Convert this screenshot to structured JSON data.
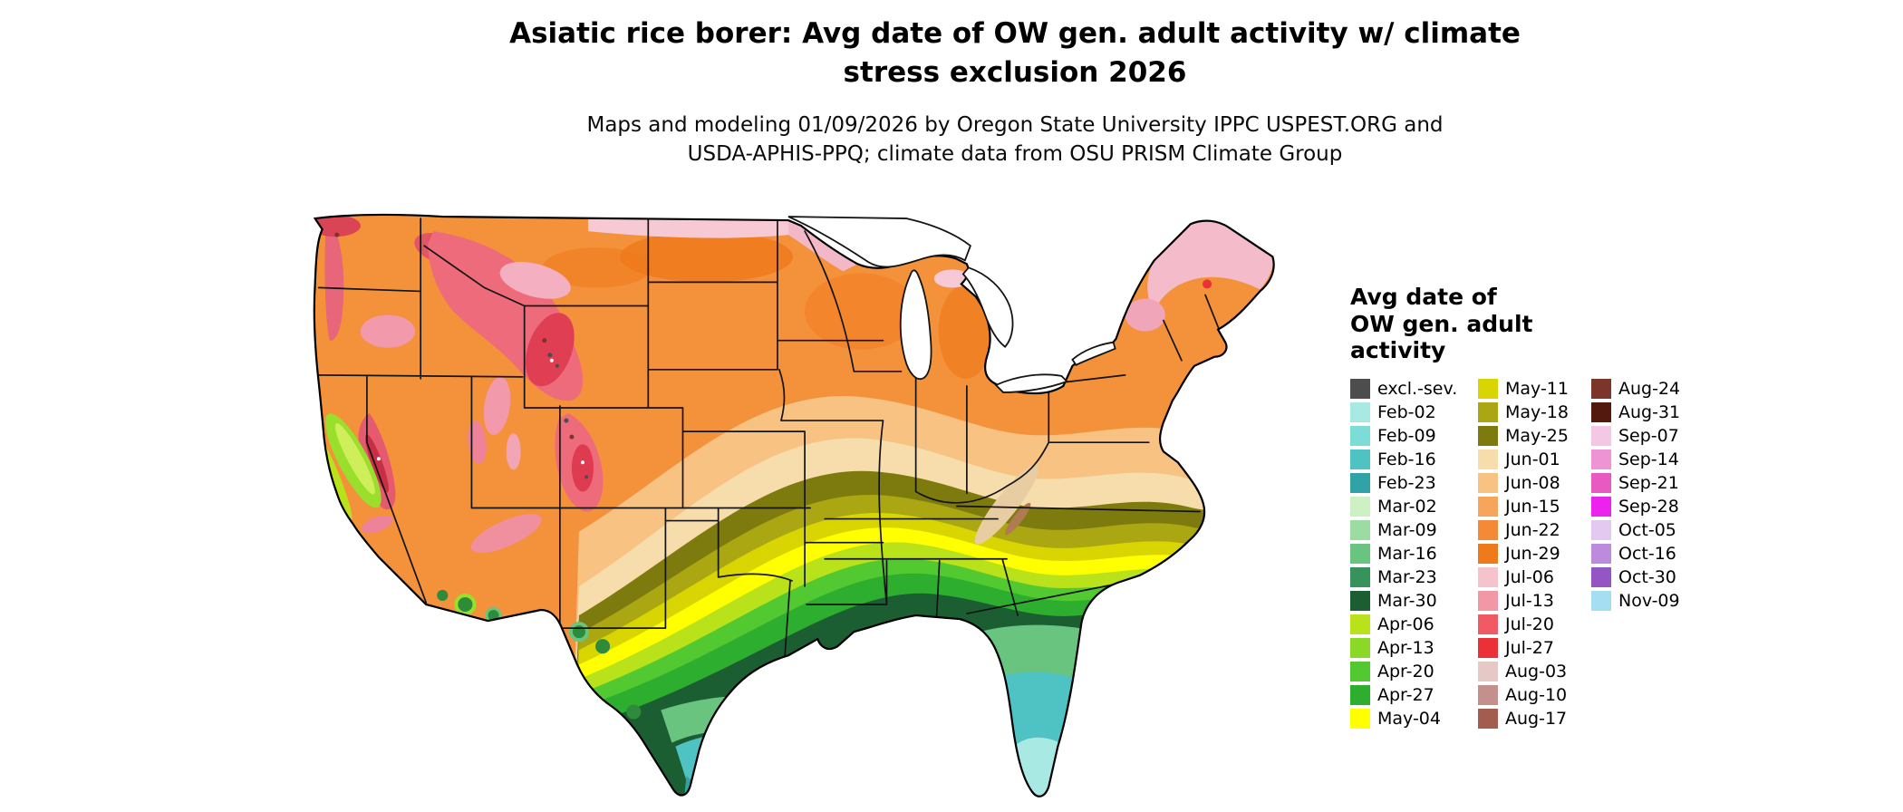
{
  "header": {
    "title": "Asiatic rice borer: Avg date of OW gen. adult activity w/ climate\nstress exclusion 2026",
    "subtitle": "Maps and modeling 01/09/2026 by Oregon State University IPPC USPEST.ORG and\nUSDA-APHIS-PPQ; climate data from OSU PRISM Climate Group"
  },
  "map": {
    "region": "Continental United States"
  },
  "legend": {
    "title": "Avg date of\nOW gen. adult\nactivity",
    "columns": [
      [
        {
          "label": "excl.-sev.",
          "color": "#4D4D4D"
        },
        {
          "label": "Feb-02",
          "color": "#A9E9E3"
        },
        {
          "label": "Feb-09",
          "color": "#7CDCD6"
        },
        {
          "label": "Feb-16",
          "color": "#4FC3C3"
        },
        {
          "label": "Feb-23",
          "color": "#2FA3A8"
        },
        {
          "label": "Mar-02",
          "color": "#CDF0C4"
        },
        {
          "label": "Mar-09",
          "color": "#9CDCA2"
        },
        {
          "label": "Mar-16",
          "color": "#68C47E"
        },
        {
          "label": "Mar-23",
          "color": "#37935C"
        },
        {
          "label": "Mar-30",
          "color": "#1B5E31"
        },
        {
          "label": "Apr-06",
          "color": "#B9E21B"
        },
        {
          "label": "Apr-13",
          "color": "#8BD926"
        },
        {
          "label": "Apr-20",
          "color": "#52C931"
        },
        {
          "label": "Apr-27",
          "color": "#2EAE2E"
        },
        {
          "label": "May-04",
          "color": "#FFFF00"
        }
      ],
      [
        {
          "label": "May-11",
          "color": "#D9D503"
        },
        {
          "label": "May-18",
          "color": "#ABA713"
        },
        {
          "label": "May-25",
          "color": "#7E7B0E"
        },
        {
          "label": "Jun-01",
          "color": "#F7DCAC"
        },
        {
          "label": "Jun-08",
          "color": "#F8C283"
        },
        {
          "label": "Jun-15",
          "color": "#F7A55B"
        },
        {
          "label": "Jun-22",
          "color": "#F48A35"
        },
        {
          "label": "Jun-29",
          "color": "#EF7A1C"
        },
        {
          "label": "Jul-06",
          "color": "#F5C3CB"
        },
        {
          "label": "Jul-13",
          "color": "#F297A5"
        },
        {
          "label": "Jul-20",
          "color": "#F05A64"
        },
        {
          "label": "Jul-27",
          "color": "#EC3038"
        },
        {
          "label": "Aug-03",
          "color": "#E6C8C6"
        },
        {
          "label": "Aug-10",
          "color": "#C4908B"
        },
        {
          "label": "Aug-17",
          "color": "#A25C50"
        }
      ],
      [
        {
          "label": "Aug-24",
          "color": "#7C352B"
        },
        {
          "label": "Aug-31",
          "color": "#53190F"
        },
        {
          "label": "Sep-07",
          "color": "#F4C8E4"
        },
        {
          "label": "Sep-14",
          "color": "#EE93D3"
        },
        {
          "label": "Sep-21",
          "color": "#E85AC2"
        },
        {
          "label": "Sep-28",
          "color": "#EE22EE"
        },
        {
          "label": "Oct-05",
          "color": "#E3C9F0"
        },
        {
          "label": "Oct-16",
          "color": "#BD8BDD"
        },
        {
          "label": "Oct-30",
          "color": "#9456C3"
        },
        {
          "label": "Nov-09",
          "color": "#A5DEF2"
        }
      ]
    ]
  }
}
